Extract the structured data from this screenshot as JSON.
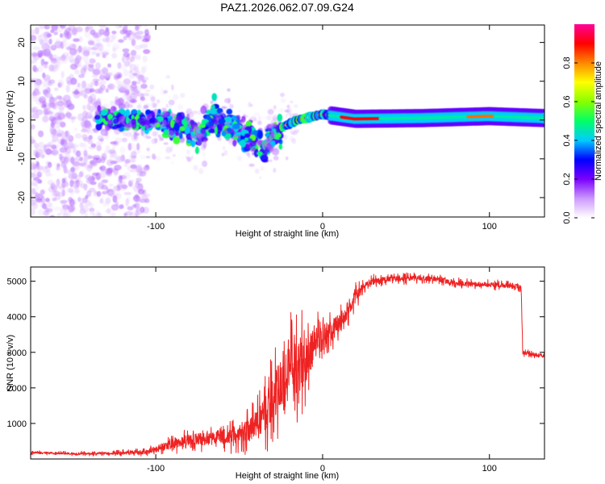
{
  "title": "PAZ1.2026.062.07.09.G24",
  "colors": {
    "snr_line": "#ee2222",
    "frame": "#000000",
    "background": "#ffffff"
  },
  "chart_data": [
    {
      "type": "heatmap",
      "name": "spectrogram",
      "xlabel": "Height of straight line (km)",
      "ylabel": "Frequency (Hz)",
      "xlim": [
        -175,
        133
      ],
      "ylim": [
        -25,
        24.5
      ],
      "xticks": [
        -100,
        0,
        100
      ],
      "yticks": [
        -20,
        -10,
        0,
        10,
        20
      ],
      "colorbar": {
        "label": "Normalized spectral amplitude",
        "range": [
          0,
          1
        ],
        "ticks": [
          "0.0",
          "0.2",
          "0.4",
          "0.6",
          "0.8"
        ],
        "tick_values": [
          0,
          0.2,
          0.4,
          0.6,
          0.8
        ],
        "colormap": [
          "#ffffff",
          "#cc99ff",
          "#7a00ff",
          "#0000ff",
          "#00ccff",
          "#00ff66",
          "#88ff00",
          "#ffff00",
          "#ff8800",
          "#ff0000",
          "#ff0099"
        ]
      },
      "ridge": [
        {
          "x": -130,
          "f": 0.5
        },
        {
          "x": -110,
          "f": -0.5
        },
        {
          "x": -95,
          "f": 0
        },
        {
          "x": -85,
          "f": -2
        },
        {
          "x": -75,
          "f": -4
        },
        {
          "x": -65,
          "f": 1
        },
        {
          "x": -55,
          "f": -2
        },
        {
          "x": -45,
          "f": -4
        },
        {
          "x": -35,
          "f": -7
        },
        {
          "x": -25,
          "f": -2
        },
        {
          "x": -15,
          "f": 0
        },
        {
          "x": 0,
          "f": 1.5
        },
        {
          "x": 20,
          "f": 0.3
        },
        {
          "x": 60,
          "f": 0.5
        },
        {
          "x": 100,
          "f": 1
        },
        {
          "x": 133,
          "f": 0.5
        }
      ]
    },
    {
      "type": "line",
      "name": "snr",
      "xlabel": "Height of straight line (km)",
      "ylabel": "SNR (10 * v/v)",
      "xlim": [
        -175,
        133
      ],
      "ylim": [
        0,
        5400
      ],
      "xticks": [
        -100,
        0,
        100
      ],
      "yticks": [
        1000,
        2000,
        3000,
        4000,
        5000
      ],
      "series": [
        {
          "name": "SNR",
          "x": [
            -175,
            -150,
            -125,
            -105,
            -95,
            -85,
            -75,
            -65,
            -55,
            -45,
            -38,
            -30,
            -25,
            -20,
            -15,
            -10,
            -5,
            0,
            5,
            10,
            15,
            20,
            25,
            30,
            40,
            60,
            80,
            100,
            118,
            119,
            120,
            125,
            133
          ],
          "y": [
            180,
            150,
            160,
            200,
            350,
            500,
            550,
            600,
            650,
            800,
            1000,
            1600,
            2200,
            2600,
            2500,
            2700,
            3200,
            3400,
            3600,
            3800,
            4200,
            4600,
            4800,
            5000,
            5050,
            5100,
            4950,
            4900,
            4850,
            4800,
            3000,
            2950,
            2900
          ],
          "noise": [
            70,
            70,
            80,
            120,
            250,
            350,
            400,
            400,
            500,
            700,
            900,
            1400,
            1600,
            1800,
            1800,
            1500,
            1000,
            800,
            700,
            600,
            500,
            400,
            300,
            200,
            180,
            160,
            150,
            150,
            150,
            150,
            120,
            100,
            100
          ]
        }
      ]
    }
  ]
}
